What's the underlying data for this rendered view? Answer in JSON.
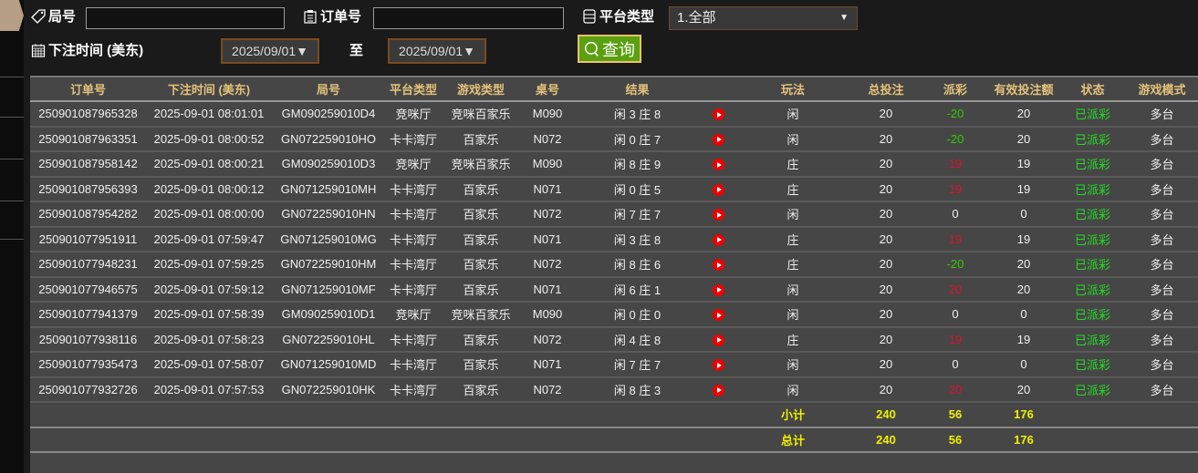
{
  "filters": {
    "round_label": "局号",
    "round_value": "",
    "order_label": "订单号",
    "order_value": "",
    "platform_label": "平台类型",
    "platform_value": "1.全部",
    "time_label": "下注时间 (美东)",
    "date_from": "2025/09/01▼",
    "to_label": "至",
    "date_to": "2025/09/01▼",
    "query_label": "查询"
  },
  "colors": {
    "accent_green": "#5aa010",
    "header_text": "#e4c27a",
    "win": "#33cc00",
    "loss": "#e0102a",
    "total": "#f0f000"
  },
  "table": {
    "headers": [
      "订单号",
      "下注时间 (美东)",
      "局号",
      "平台类型",
      "游戏类型",
      "桌号",
      "结果",
      "",
      "玩法",
      "总投注",
      "派彩",
      "有效投注额",
      "状态",
      "游戏模式"
    ],
    "rows": [
      [
        "250901087965328",
        "2025-09-01 08:01:01",
        "GM090259010D4",
        "竞咪厅",
        "竞咪百家乐",
        "M090",
        "闲 3 庄 8",
        "闲",
        "20",
        "-20",
        "20",
        "已派彩",
        "多台"
      ],
      [
        "250901087963351",
        "2025-09-01 08:00:52",
        "GN072259010HO",
        "卡卡湾厅",
        "百家乐",
        "N072",
        "闲 0 庄 7",
        "闲",
        "20",
        "-20",
        "20",
        "已派彩",
        "多台"
      ],
      [
        "250901087958142",
        "2025-09-01 08:00:21",
        "GM090259010D3",
        "竞咪厅",
        "竞咪百家乐",
        "M090",
        "闲 8 庄 9",
        "庄",
        "20",
        "19",
        "19",
        "已派彩",
        "多台"
      ],
      [
        "250901087956393",
        "2025-09-01 08:00:12",
        "GN071259010MH",
        "卡卡湾厅",
        "百家乐",
        "N071",
        "闲 0 庄 5",
        "庄",
        "20",
        "19",
        "19",
        "已派彩",
        "多台"
      ],
      [
        "250901087954282",
        "2025-09-01 08:00:00",
        "GN072259010HN",
        "卡卡湾厅",
        "百家乐",
        "N072",
        "闲 7 庄 7",
        "闲",
        "20",
        "0",
        "0",
        "已派彩",
        "多台"
      ],
      [
        "250901077951911",
        "2025-09-01 07:59:47",
        "GN071259010MG",
        "卡卡湾厅",
        "百家乐",
        "N071",
        "闲 3 庄 8",
        "庄",
        "20",
        "19",
        "19",
        "已派彩",
        "多台"
      ],
      [
        "250901077948231",
        "2025-09-01 07:59:25",
        "GN072259010HM",
        "卡卡湾厅",
        "百家乐",
        "N072",
        "闲 8 庄 6",
        "庄",
        "20",
        "-20",
        "20",
        "已派彩",
        "多台"
      ],
      [
        "250901077946575",
        "2025-09-01 07:59:12",
        "GN071259010MF",
        "卡卡湾厅",
        "百家乐",
        "N071",
        "闲 6 庄 1",
        "闲",
        "20",
        "20",
        "20",
        "已派彩",
        "多台"
      ],
      [
        "250901077941379",
        "2025-09-01 07:58:39",
        "GM090259010D1",
        "竞咪厅",
        "竞咪百家乐",
        "M090",
        "闲 0 庄 0",
        "闲",
        "20",
        "0",
        "0",
        "已派彩",
        "多台"
      ],
      [
        "250901077938116",
        "2025-09-01 07:58:23",
        "GN072259010HL",
        "卡卡湾厅",
        "百家乐",
        "N072",
        "闲 4 庄 8",
        "庄",
        "20",
        "19",
        "19",
        "已派彩",
        "多台"
      ],
      [
        "250901077935473",
        "2025-09-01 07:58:07",
        "GN071259010MD",
        "卡卡湾厅",
        "百家乐",
        "N071",
        "闲 7 庄 7",
        "闲",
        "20",
        "0",
        "0",
        "已派彩",
        "多台"
      ],
      [
        "250901077932726",
        "2025-09-01 07:57:53",
        "GN072259010HK",
        "卡卡湾厅",
        "百家乐",
        "N072",
        "闲 8 庄 3",
        "闲",
        "20",
        "20",
        "20",
        "已派彩",
        "多台"
      ]
    ],
    "subtotal": {
      "label": "小计",
      "total_bet": "240",
      "payout": "56",
      "valid_bet": "176"
    },
    "grand_total": {
      "label": "总计",
      "total_bet": "240",
      "payout": "56",
      "valid_bet": "176"
    }
  }
}
